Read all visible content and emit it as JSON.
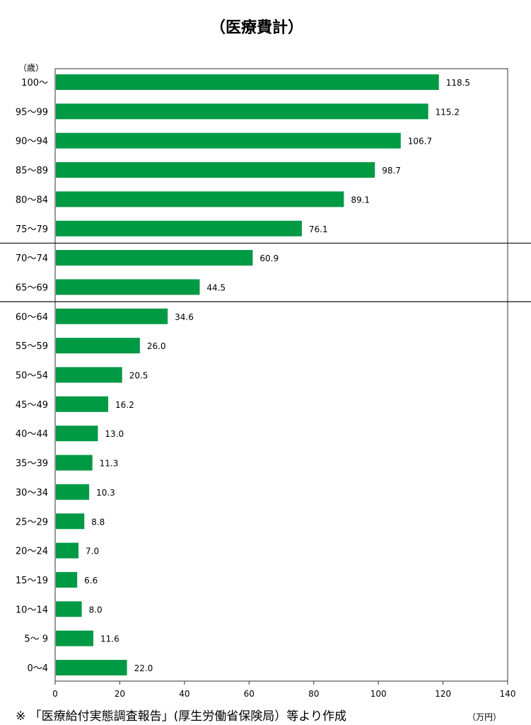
{
  "chart_data": {
    "type": "bar",
    "orientation": "horizontal",
    "title": "（医療費計）",
    "ylabel": "（歳）",
    "xlabel": "（万円）",
    "categories": [
      "100～",
      "95～99",
      "90～94",
      "85～89",
      "80～84",
      "75～79",
      "70～74",
      "65～69",
      "60～64",
      "55～59",
      "50～54",
      "45～49",
      "40～44",
      "35～39",
      "30～34",
      "25～29",
      "20～24",
      "15～19",
      "10～14",
      "5～ 9",
      "0～4"
    ],
    "values": [
      118.5,
      115.2,
      106.7,
      98.7,
      89.1,
      76.1,
      60.9,
      44.5,
      34.6,
      26.0,
      20.5,
      16.2,
      13.0,
      11.3,
      10.3,
      8.8,
      7.0,
      6.6,
      8.0,
      11.6,
      22.0
    ],
    "value_labels": [
      "118.5",
      "115.2",
      "106.7",
      "98.7",
      "89.1",
      "76.1",
      "60.9",
      "44.5",
      "34.6",
      "26.0",
      "20.5",
      "16.2",
      "13.0",
      "11.3",
      "10.3",
      "8.8",
      "7.0",
      "6.6",
      "8.0",
      "11.6",
      "22.0"
    ],
    "xlim": [
      0,
      140
    ],
    "xticks": [
      "0",
      "20",
      "40",
      "60",
      "80",
      "100",
      "120",
      "140"
    ],
    "group_dividers_after": [
      "75～79",
      "65～69"
    ],
    "grid": false,
    "legend": "none",
    "bar_color": "#009944"
  },
  "footer": {
    "source": "※ 「医療給付実態調査報告」(厚生労働省保険局）等より作成"
  }
}
